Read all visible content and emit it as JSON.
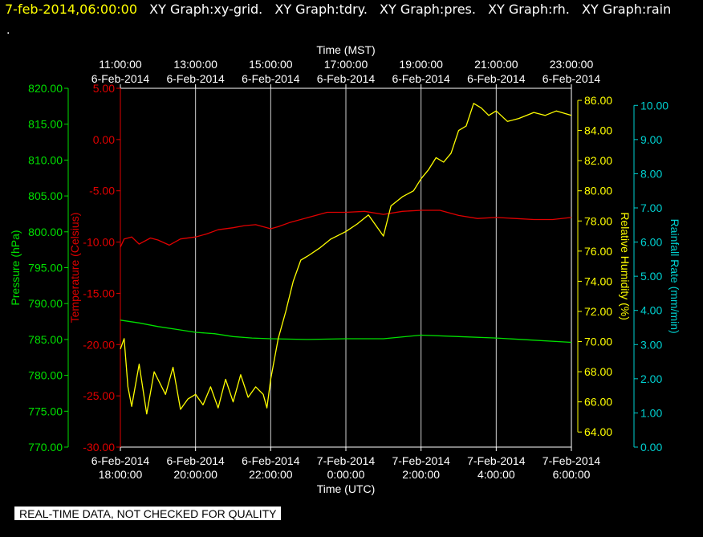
{
  "header": {
    "timestamp": "7-feb-2014,06:00:00",
    "graphs": [
      "XY Graph:xy-grid.",
      "XY Graph:tdry.",
      "XY Graph:pres.",
      "XY Graph:rh.",
      "XY Graph:rain"
    ],
    "line2": "."
  },
  "notice": "REAL-TIME DATA, NOT CHECKED FOR QUALITY",
  "chart_data": {
    "type": "line",
    "top_axis": {
      "label": "Time (MST)",
      "ticks": [
        {
          "time": "11:00:00",
          "date": "6-Feb-2014"
        },
        {
          "time": "13:00:00",
          "date": "6-Feb-2014"
        },
        {
          "time": "15:00:00",
          "date": "6-Feb-2014"
        },
        {
          "time": "17:00:00",
          "date": "6-Feb-2014"
        },
        {
          "time": "19:00:00",
          "date": "6-Feb-2014"
        },
        {
          "time": "21:00:00",
          "date": "6-Feb-2014"
        },
        {
          "time": "23:00:00",
          "date": "6-Feb-2014"
        }
      ]
    },
    "bottom_axis": {
      "label": "Time (UTC)",
      "ticks": [
        {
          "date": "6-Feb-2014",
          "time": "18:00:00"
        },
        {
          "date": "6-Feb-2014",
          "time": "20:00:00"
        },
        {
          "date": "6-Feb-2014",
          "time": "22:00:00"
        },
        {
          "date": "7-Feb-2014",
          "time": "0:00:00"
        },
        {
          "date": "7-Feb-2014",
          "time": "2:00:00"
        },
        {
          "date": "7-Feb-2014",
          "time": "4:00:00"
        },
        {
          "date": "7-Feb-2014",
          "time": "6:00:00"
        }
      ]
    },
    "x_hours_utc_range": [
      18,
      30
    ],
    "grid": true,
    "axes": {
      "pressure": {
        "label": "Pressure (hPa)",
        "color": "#00e000",
        "range": [
          770,
          820
        ],
        "ticks": [
          "770.00",
          "775.00",
          "780.00",
          "785.00",
          "790.00",
          "795.00",
          "800.00",
          "805.00",
          "810.00",
          "815.00",
          "820.00"
        ]
      },
      "temperature": {
        "label": "Temperature (Celsius)",
        "color": "#e00000",
        "range": [
          -30,
          5
        ],
        "ticks": [
          "-30.00",
          "-25.00",
          "-20.00",
          "-15.00",
          "-10.00",
          "-5.00",
          "0.00",
          "5.00"
        ]
      },
      "humidity": {
        "label": "Relative Humidity (%)",
        "color": "#ffff00",
        "range": [
          63,
          86.8
        ],
        "ticks": [
          "64.00",
          "66.00",
          "68.00",
          "70.00",
          "72.00",
          "74.00",
          "76.00",
          "78.00",
          "80.00",
          "82.00",
          "84.00",
          "86.00"
        ]
      },
      "rain": {
        "label": "Rainfall Rate (mm/min)",
        "color": "#00d0d0",
        "range": [
          0,
          10.5
        ],
        "ticks": [
          "0.00",
          "1.00",
          "2.00",
          "3.00",
          "4.00",
          "5.00",
          "6.00",
          "7.00",
          "8.00",
          "9.00",
          "10.00"
        ]
      }
    },
    "series": [
      {
        "name": "tdry",
        "axis": "temperature",
        "color": "#e00000",
        "x": [
          18.0,
          18.1,
          18.3,
          18.5,
          18.8,
          19.0,
          19.3,
          19.6,
          20.0,
          20.3,
          20.6,
          21.0,
          21.3,
          21.6,
          22.0,
          22.2,
          22.5,
          23.0,
          23.5,
          24.0,
          24.5,
          25.0,
          25.5,
          26.0,
          26.5,
          27.0,
          27.5,
          28.0,
          28.5,
          29.0,
          29.5,
          30.0
        ],
        "y": [
          -10.5,
          -9.7,
          -9.5,
          -10.2,
          -9.6,
          -9.8,
          -10.3,
          -9.7,
          -9.5,
          -9.2,
          -8.8,
          -8.6,
          -8.4,
          -8.3,
          -8.7,
          -8.5,
          -8.1,
          -7.6,
          -7.1,
          -7.1,
          -7.0,
          -7.3,
          -7.0,
          -6.9,
          -6.9,
          -7.4,
          -7.7,
          -7.6,
          -7.7,
          -7.8,
          -7.8,
          -7.6
        ]
      },
      {
        "name": "pres",
        "axis": "pressure",
        "color": "#00e000",
        "x": [
          18.0,
          18.5,
          19.0,
          19.5,
          20.0,
          20.5,
          21.0,
          21.5,
          22.0,
          23.0,
          24.0,
          25.0,
          26.0,
          27.0,
          28.0,
          29.0,
          30.0
        ],
        "y": [
          787.7,
          787.3,
          786.8,
          786.4,
          786.0,
          785.8,
          785.4,
          785.2,
          785.1,
          785.0,
          785.1,
          785.1,
          785.6,
          785.4,
          785.2,
          784.9,
          784.6
        ]
      },
      {
        "name": "rh",
        "axis": "humidity",
        "color": "#ffff00",
        "x": [
          18.0,
          18.1,
          18.2,
          18.3,
          18.5,
          18.7,
          18.9,
          19.0,
          19.2,
          19.4,
          19.6,
          19.8,
          20.0,
          20.2,
          20.4,
          20.6,
          20.8,
          21.0,
          21.2,
          21.4,
          21.6,
          21.8,
          21.9,
          22.0,
          22.2,
          22.4,
          22.6,
          22.8,
          23.0,
          23.3,
          23.6,
          24.0,
          24.3,
          24.6,
          25.0,
          25.2,
          25.5,
          25.8,
          26.0,
          26.2,
          26.4,
          26.6,
          26.8,
          27.0,
          27.2,
          27.4,
          27.6,
          27.8,
          28.0,
          28.3,
          28.6,
          29.0,
          29.3,
          29.6,
          30.0
        ],
        "y": [
          69.5,
          70.2,
          67.0,
          65.7,
          68.5,
          65.2,
          68.0,
          67.5,
          66.5,
          68.3,
          65.5,
          66.2,
          66.5,
          65.8,
          67.0,
          65.6,
          67.5,
          66.0,
          67.8,
          66.3,
          67.0,
          66.5,
          65.6,
          67.5,
          70.2,
          72.0,
          74.0,
          75.4,
          75.7,
          76.2,
          76.8,
          77.3,
          77.8,
          78.4,
          77.0,
          79.0,
          79.6,
          80.0,
          80.8,
          81.4,
          82.2,
          81.9,
          82.5,
          84.0,
          84.3,
          85.8,
          85.5,
          85.0,
          85.3,
          84.6,
          84.8,
          85.2,
          85.0,
          85.3,
          85.0
        ]
      },
      {
        "name": "rain",
        "axis": "rain",
        "color": "#00d0d0",
        "x": [],
        "y": []
      }
    ]
  }
}
